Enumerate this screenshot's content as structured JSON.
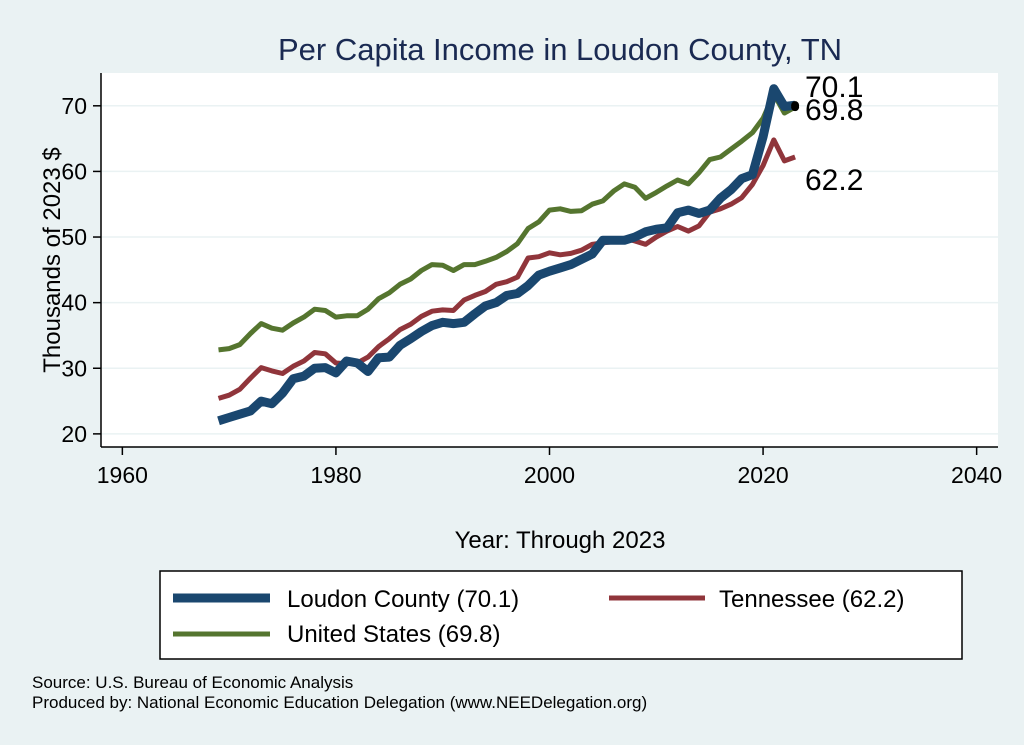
{
  "chart_data": {
    "type": "line",
    "title": "Per Capita Income in Loudon County, TN",
    "xlabel": "Year: Through 2023",
    "ylabel": "Thousands of 2023 $",
    "xlim": [
      1958,
      2042
    ],
    "ylim": [
      18,
      75
    ],
    "xticks": [
      1960,
      1980,
      2000,
      2020,
      2040
    ],
    "yticks": [
      20,
      30,
      40,
      50,
      60,
      70
    ],
    "x": [
      1969,
      1970,
      1971,
      1972,
      1973,
      1974,
      1975,
      1976,
      1977,
      1978,
      1979,
      1980,
      1981,
      1982,
      1983,
      1984,
      1985,
      1986,
      1987,
      1988,
      1989,
      1990,
      1991,
      1992,
      1993,
      1994,
      1995,
      1996,
      1997,
      1998,
      1999,
      2000,
      2001,
      2002,
      2003,
      2004,
      2005,
      2006,
      2007,
      2008,
      2009,
      2010,
      2011,
      2012,
      2013,
      2014,
      2015,
      2016,
      2017,
      2018,
      2019,
      2020,
      2021,
      2022,
      2023
    ],
    "series": [
      {
        "name": "Loudon County",
        "color": "#1a476f",
        "values": [
          22.0,
          22.5,
          23.0,
          23.5,
          25.0,
          24.6,
          26.2,
          28.4,
          28.8,
          30.0,
          30.1,
          29.3,
          31.1,
          30.8,
          29.5,
          31.6,
          31.7,
          33.5,
          34.5,
          35.6,
          36.5,
          37.0,
          36.8,
          37.0,
          38.3,
          39.5,
          40.0,
          41.1,
          41.4,
          42.6,
          44.2,
          44.8,
          45.3,
          45.8,
          46.6,
          47.4,
          49.5,
          49.5,
          49.5,
          50.0,
          50.8,
          51.2,
          51.4,
          53.7,
          54.1,
          53.6,
          54.1,
          55.9,
          57.2,
          58.9,
          59.5,
          65.3,
          72.6,
          69.9,
          70.1
        ]
      },
      {
        "name": "Tennessee",
        "color": "#90353b",
        "values": [
          25.4,
          25.9,
          26.8,
          28.5,
          30.1,
          29.6,
          29.2,
          30.3,
          31.1,
          32.4,
          32.2,
          30.8,
          30.7,
          30.8,
          31.7,
          33.3,
          34.5,
          35.9,
          36.7,
          37.9,
          38.7,
          38.9,
          38.8,
          40.4,
          41.1,
          41.7,
          42.8,
          43.2,
          43.9,
          46.8,
          47.0,
          47.6,
          47.3,
          47.5,
          48.0,
          48.9,
          49.1,
          49.3,
          49.8,
          49.4,
          48.9,
          50.0,
          50.9,
          51.6,
          50.9,
          51.7,
          53.8,
          54.3,
          55.0,
          56.0,
          58.0,
          60.9,
          64.8,
          61.6,
          62.2
        ]
      },
      {
        "name": "United States",
        "color": "#55752f",
        "values": [
          32.8,
          33.0,
          33.6,
          35.3,
          36.8,
          36.1,
          35.8,
          36.9,
          37.8,
          39.0,
          38.8,
          37.8,
          38.0,
          38.0,
          39.0,
          40.6,
          41.5,
          42.8,
          43.6,
          44.9,
          45.8,
          45.7,
          44.9,
          45.8,
          45.8,
          46.3,
          46.9,
          47.8,
          49.0,
          51.3,
          52.3,
          54.1,
          54.3,
          53.9,
          54.0,
          55.0,
          55.5,
          57.0,
          58.1,
          57.6,
          55.9,
          56.8,
          57.8,
          58.7,
          58.1,
          59.8,
          61.8,
          62.2,
          63.4,
          64.6,
          65.9,
          68.1,
          71.8,
          68.9,
          69.8
        ]
      }
    ],
    "end_labels": [
      "70.1",
      "69.8",
      "62.2"
    ],
    "legend": {
      "position": "bottom",
      "entries": [
        "Loudon County (70.1)",
        "Tennessee (62.2)",
        "United States (69.8)"
      ]
    },
    "grid": true,
    "background": "#eaf2f3",
    "plot_background": "#ffffff"
  },
  "footer": {
    "source": "Source: U.S. Bureau of Economic Analysis",
    "produced_by": "Produced by: National Economic Education Delegation (www.NEEDelegation.org)"
  }
}
